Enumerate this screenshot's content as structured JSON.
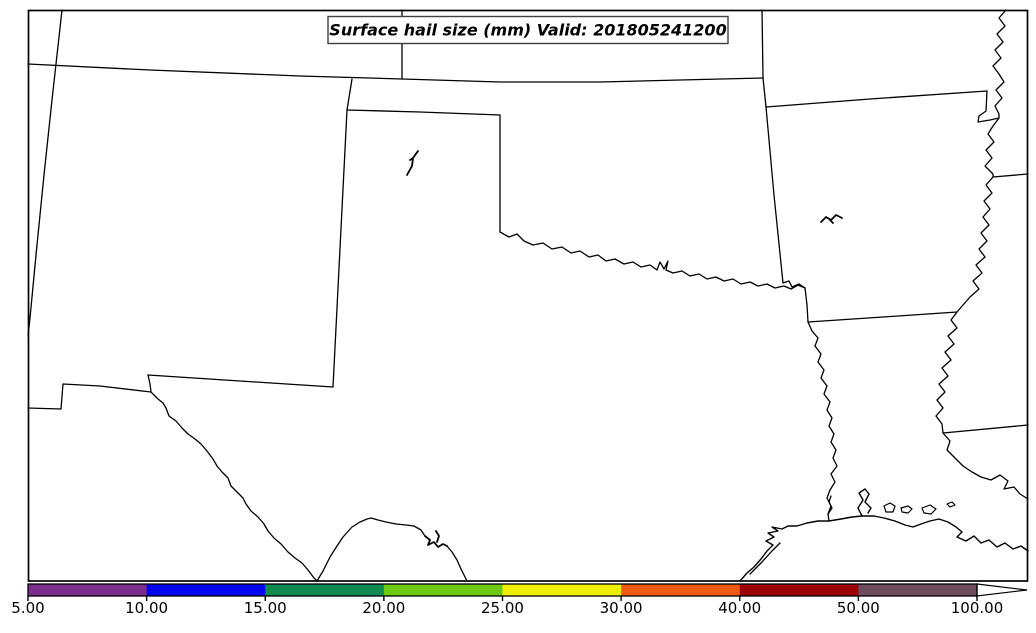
{
  "title": {
    "text": "Surface hail size (mm) Valid: 201805241200"
  },
  "colorbar": {
    "tick_labels": [
      "5.00",
      "10.00",
      "15.00",
      "20.00",
      "25.00",
      "30.00",
      "40.00",
      "50.00",
      "100.00"
    ],
    "boundaries": [
      5,
      10,
      15,
      20,
      25,
      30,
      40,
      50,
      100
    ],
    "segment_colors": [
      "#7B2E8C",
      "#0606EE",
      "#0F8A50",
      "#6EC912",
      "#EFEF02",
      "#EE5A0F",
      "#9C0303",
      "#6F4C5C"
    ],
    "over_color": "#FFFFFF",
    "line_color": "#000000"
  }
}
